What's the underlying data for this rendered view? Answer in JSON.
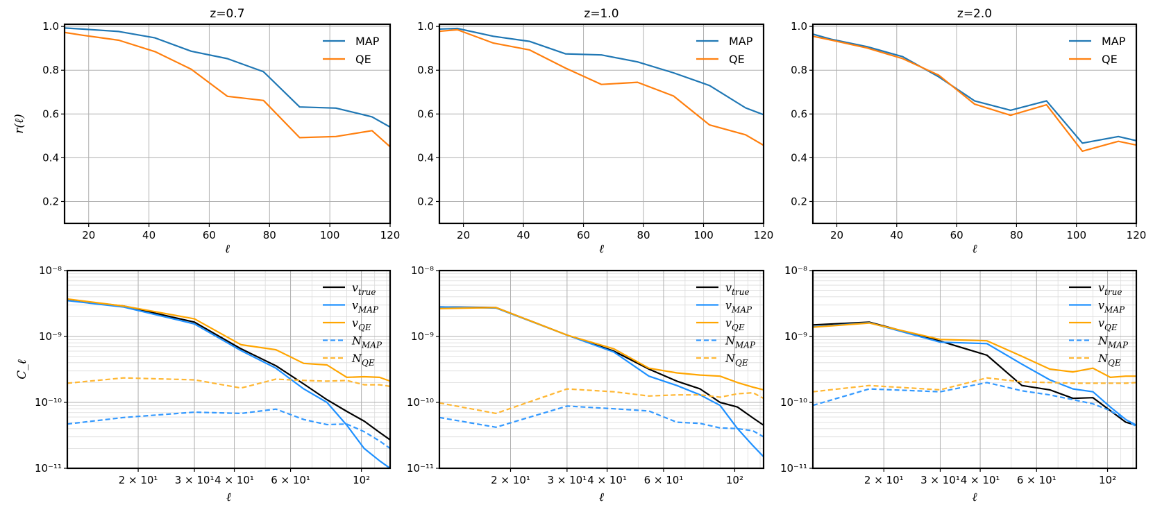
{
  "figure": {
    "kind": "scientific multi-panel plot"
  },
  "colors": {
    "map": "#1f77b4",
    "qe": "#ff7f0e",
    "true": "#000000",
    "v_map": "#1e90ff",
    "v_qe": "#ffa500",
    "n_map": "#3399ff",
    "n_qe": "#ffb733",
    "grid": "#b0b0b0"
  },
  "chart_data": [
    {
      "type": "line",
      "panel": "top-left",
      "title": "z=0.7",
      "xlabel": "ℓ",
      "ylabel": "r(ℓ)",
      "xlim": [
        12,
        120
      ],
      "ylim": [
        0.1,
        1.01
      ],
      "xticks": [
        20,
        40,
        60,
        80,
        100,
        120
      ],
      "xtick_labels": [
        "20",
        "40",
        "60",
        "80",
        "100",
        "120"
      ],
      "yticks": [
        0.2,
        0.4,
        0.6,
        0.8,
        1.0
      ],
      "ytick_labels": [
        "0.2",
        "0.4",
        "0.6",
        "0.8",
        "1.0"
      ],
      "legend": "top-right",
      "x": [
        12,
        18,
        30,
        42,
        54,
        66,
        78,
        90,
        102,
        114,
        120
      ],
      "series": [
        {
          "name": "MAP",
          "values": [
            0.993,
            0.988,
            0.977,
            0.948,
            0.887,
            0.853,
            0.793,
            0.632,
            0.627,
            0.587,
            0.54
          ]
        },
        {
          "name": "QE",
          "values": [
            0.973,
            0.96,
            0.937,
            0.885,
            0.805,
            0.681,
            0.662,
            0.492,
            0.497,
            0.524,
            0.45
          ]
        }
      ]
    },
    {
      "type": "line",
      "panel": "top-middle",
      "title": "z=1.0",
      "xlabel": "ℓ",
      "ylabel": "",
      "xlim": [
        12,
        120
      ],
      "ylim": [
        0.1,
        1.01
      ],
      "xticks": [
        20,
        40,
        60,
        80,
        100,
        120
      ],
      "xtick_labels": [
        "20",
        "40",
        "60",
        "80",
        "100",
        "120"
      ],
      "yticks": [
        0.2,
        0.4,
        0.6,
        0.8,
        1.0
      ],
      "ytick_labels": [
        "0.2",
        "0.4",
        "0.6",
        "0.8",
        "1.0"
      ],
      "legend": "top-right",
      "x": [
        12,
        18,
        30,
        42,
        54,
        66,
        78,
        90,
        102,
        114,
        120
      ],
      "series": [
        {
          "name": "MAP",
          "values": [
            0.988,
            0.991,
            0.955,
            0.932,
            0.875,
            0.87,
            0.838,
            0.788,
            0.73,
            0.628,
            0.597
          ]
        },
        {
          "name": "QE",
          "values": [
            0.978,
            0.985,
            0.924,
            0.893,
            0.81,
            0.735,
            0.745,
            0.682,
            0.55,
            0.505,
            0.457
          ]
        }
      ]
    },
    {
      "type": "line",
      "panel": "top-right",
      "title": "z=2.0",
      "xlabel": "ℓ",
      "ylabel": "",
      "xlim": [
        12,
        120
      ],
      "ylim": [
        0.1,
        1.01
      ],
      "xticks": [
        20,
        40,
        60,
        80,
        100,
        120
      ],
      "xtick_labels": [
        "20",
        "40",
        "60",
        "80",
        "100",
        "120"
      ],
      "yticks": [
        0.2,
        0.4,
        0.6,
        0.8,
        1.0
      ],
      "ytick_labels": [
        "0.2",
        "0.4",
        "0.6",
        "0.8",
        "1.0"
      ],
      "legend": "top-right",
      "x": [
        12,
        18,
        30,
        42,
        54,
        66,
        78,
        90,
        102,
        114,
        120
      ],
      "series": [
        {
          "name": "MAP",
          "values": [
            0.965,
            0.942,
            0.908,
            0.862,
            0.77,
            0.66,
            0.617,
            0.66,
            0.467,
            0.497,
            0.478
          ]
        },
        {
          "name": "QE",
          "values": [
            0.955,
            0.938,
            0.902,
            0.853,
            0.778,
            0.645,
            0.594,
            0.642,
            0.43,
            0.475,
            0.458
          ]
        }
      ]
    },
    {
      "type": "line",
      "panel": "bottom-left",
      "scale": "log-log",
      "xlabel": "ℓ",
      "ylabel": "C_ℓ",
      "xlim": [
        12,
        123
      ],
      "ylim": [
        1e-11,
        1e-08
      ],
      "xticks": [
        20,
        30,
        40,
        60,
        100
      ],
      "xtick_labels": [
        "2 × 10¹",
        "3 × 10¹",
        "4 × 10¹",
        "6 × 10¹",
        "10²"
      ],
      "yticks": [
        1e-11,
        1e-10,
        1e-09,
        1e-08
      ],
      "ytick_labels": [
        "10⁻¹¹",
        "10⁻¹⁰",
        "10⁻⁹",
        "10⁻⁸"
      ],
      "legend": "top-right",
      "x": [
        12,
        18,
        30,
        42,
        54,
        66,
        78,
        90,
        102,
        114,
        123
      ],
      "series": [
        {
          "name": "v_true",
          "label_main": "v",
          "label_sub": "true",
          "style": "solid",
          "values": [
            3.6e-09,
            2.9e-09,
            1.65e-09,
            6.5e-10,
            3.6e-10,
            1.9e-10,
            1.1e-10,
            7.3e-11,
            5.2e-11,
            3.5e-11,
            2.7e-11
          ]
        },
        {
          "name": "v_MAP",
          "label_main": "v",
          "label_sub": "MAP",
          "style": "solid",
          "values": [
            3.5e-09,
            2.8e-09,
            1.55e-09,
            6.1e-10,
            3.3e-10,
            1.6e-10,
            1e-10,
            4.5e-11,
            2e-11,
            1.3e-11,
            1e-11
          ]
        },
        {
          "name": "v_QE",
          "label_main": "v",
          "label_sub": "QE",
          "style": "solid",
          "values": [
            3.7e-09,
            2.9e-09,
            1.85e-09,
            7.5e-10,
            6.3e-10,
            3.9e-10,
            3.7e-10,
            2.4e-10,
            2.45e-10,
            2.4e-10,
            2.1e-10
          ]
        },
        {
          "name": "N_MAP",
          "label_main": "N",
          "label_sub": "MAP",
          "style": "dashed",
          "values": [
            4.7e-11,
            5.9e-11,
            7.1e-11,
            6.8e-11,
            7.9e-11,
            5.5e-11,
            4.6e-11,
            4.7e-11,
            3.6e-11,
            2.6e-11,
            2e-11
          ]
        },
        {
          "name": "N_QE",
          "label_main": "N",
          "label_sub": "QE",
          "style": "dashed",
          "values": [
            1.95e-10,
            2.35e-10,
            2.2e-10,
            1.65e-10,
            2.25e-10,
            2.15e-10,
            2.1e-10,
            2.15e-10,
            1.85e-10,
            1.85e-10,
            1.75e-10
          ]
        }
      ]
    },
    {
      "type": "line",
      "panel": "bottom-middle",
      "scale": "log-log",
      "xlabel": "ℓ",
      "ylabel": "",
      "xlim": [
        12,
        123
      ],
      "ylim": [
        1e-11,
        1e-08
      ],
      "xticks": [
        20,
        30,
        40,
        60,
        100
      ],
      "xtick_labels": [
        "2 × 10¹",
        "3 × 10¹",
        "4 × 10¹",
        "6 × 10¹",
        "10²"
      ],
      "yticks": [
        1e-11,
        1e-10,
        1e-09,
        1e-08
      ],
      "ytick_labels": [
        "10⁻¹¹",
        "10⁻¹⁰",
        "10⁻⁹",
        "10⁻⁸"
      ],
      "legend": "top-right",
      "x": [
        12,
        18,
        30,
        42,
        54,
        66,
        78,
        90,
        102,
        114,
        123
      ],
      "series": [
        {
          "name": "v_true",
          "label_main": "v",
          "label_sub": "true",
          "style": "solid",
          "values": [
            2.8e-09,
            2.75e-09,
            1.05e-09,
            6e-10,
            3.2e-10,
            2.1e-10,
            1.6e-10,
            1e-10,
            8.5e-11,
            5.8e-11,
            4.5e-11
          ]
        },
        {
          "name": "v_MAP",
          "label_main": "v",
          "label_sub": "MAP",
          "style": "solid",
          "values": [
            2.8e-09,
            2.7e-09,
            1.05e-09,
            5.8e-10,
            2.5e-10,
            1.8e-10,
            1.3e-10,
            9e-11,
            4e-11,
            2.2e-11,
            1.5e-11
          ]
        },
        {
          "name": "v_QE",
          "label_main": "v",
          "label_sub": "QE",
          "style": "solid",
          "values": [
            2.65e-09,
            2.75e-09,
            1.05e-09,
            6.5e-10,
            3.3e-10,
            2.8e-10,
            2.6e-10,
            2.5e-10,
            2e-10,
            1.7e-10,
            1.55e-10
          ]
        },
        {
          "name": "N_MAP",
          "label_main": "N",
          "label_sub": "MAP",
          "style": "dashed",
          "values": [
            5.9e-11,
            4.2e-11,
            8.8e-11,
            8e-11,
            7.4e-11,
            5e-11,
            4.8e-11,
            4.1e-11,
            4e-11,
            3.7e-11,
            3e-11
          ]
        },
        {
          "name": "N_QE",
          "label_main": "N",
          "label_sub": "QE",
          "style": "dashed",
          "values": [
            9.8e-11,
            6.8e-11,
            1.6e-10,
            1.45e-10,
            1.25e-10,
            1.3e-10,
            1.3e-10,
            1.2e-10,
            1.35e-10,
            1.4e-10,
            1.15e-10
          ]
        }
      ]
    },
    {
      "type": "line",
      "panel": "bottom-right",
      "scale": "log-log",
      "xlabel": "ℓ",
      "ylabel": "",
      "xlim": [
        12,
        123
      ],
      "ylim": [
        1e-11,
        1e-08
      ],
      "xticks": [
        20,
        30,
        40,
        60,
        100
      ],
      "xtick_labels": [
        "2 × 10¹",
        "3 × 10¹",
        "4 × 10¹",
        "6 × 10¹",
        "10²"
      ],
      "yticks": [
        1e-11,
        1e-10,
        1e-09,
        1e-08
      ],
      "ytick_labels": [
        "10⁻¹¹",
        "10⁻¹⁰",
        "10⁻⁹",
        "10⁻⁸"
      ],
      "legend": "top-right",
      "x": [
        12,
        18,
        30,
        42,
        54,
        66,
        78,
        90,
        102,
        114,
        123
      ],
      "series": [
        {
          "name": "v_true",
          "label_main": "v",
          "label_sub": "true",
          "style": "solid",
          "values": [
            1.5e-09,
            1.65e-09,
            8.5e-10,
            5.2e-10,
            1.8e-10,
            1.55e-10,
            1.15e-10,
            1.18e-10,
            7.5e-11,
            5e-11,
            4.5e-11
          ]
        },
        {
          "name": "v_MAP",
          "label_main": "v",
          "label_sub": "MAP",
          "style": "solid",
          "values": [
            1.4e-09,
            1.62e-09,
            8.2e-10,
            7.8e-10,
            3.8e-10,
            2.2e-10,
            1.6e-10,
            1.45e-10,
            8.5e-11,
            5.5e-11,
            4.5e-11
          ]
        },
        {
          "name": "v_QE",
          "label_main": "v",
          "label_sub": "QE",
          "style": "solid",
          "values": [
            1.38e-09,
            1.6e-09,
            9e-10,
            8.6e-10,
            5e-10,
            3.2e-10,
            2.9e-10,
            3.3e-10,
            2.4e-10,
            2.5e-10,
            2.5e-10
          ]
        },
        {
          "name": "N_MAP",
          "label_main": "N",
          "label_sub": "MAP",
          "style": "dashed",
          "values": [
            9e-11,
            1.6e-10,
            1.45e-10,
            2e-10,
            1.5e-10,
            1.3e-10,
            1.1e-10,
            9.5e-11,
            7.5e-11,
            5.5e-11,
            4.3e-11
          ]
        },
        {
          "name": "N_QE",
          "label_main": "N",
          "label_sub": "QE",
          "style": "dashed",
          "values": [
            1.45e-10,
            1.8e-10,
            1.55e-10,
            2.35e-10,
            2.05e-10,
            2e-10,
            1.95e-10,
            1.95e-10,
            1.95e-10,
            1.95e-10,
            2e-10
          ]
        }
      ]
    }
  ]
}
